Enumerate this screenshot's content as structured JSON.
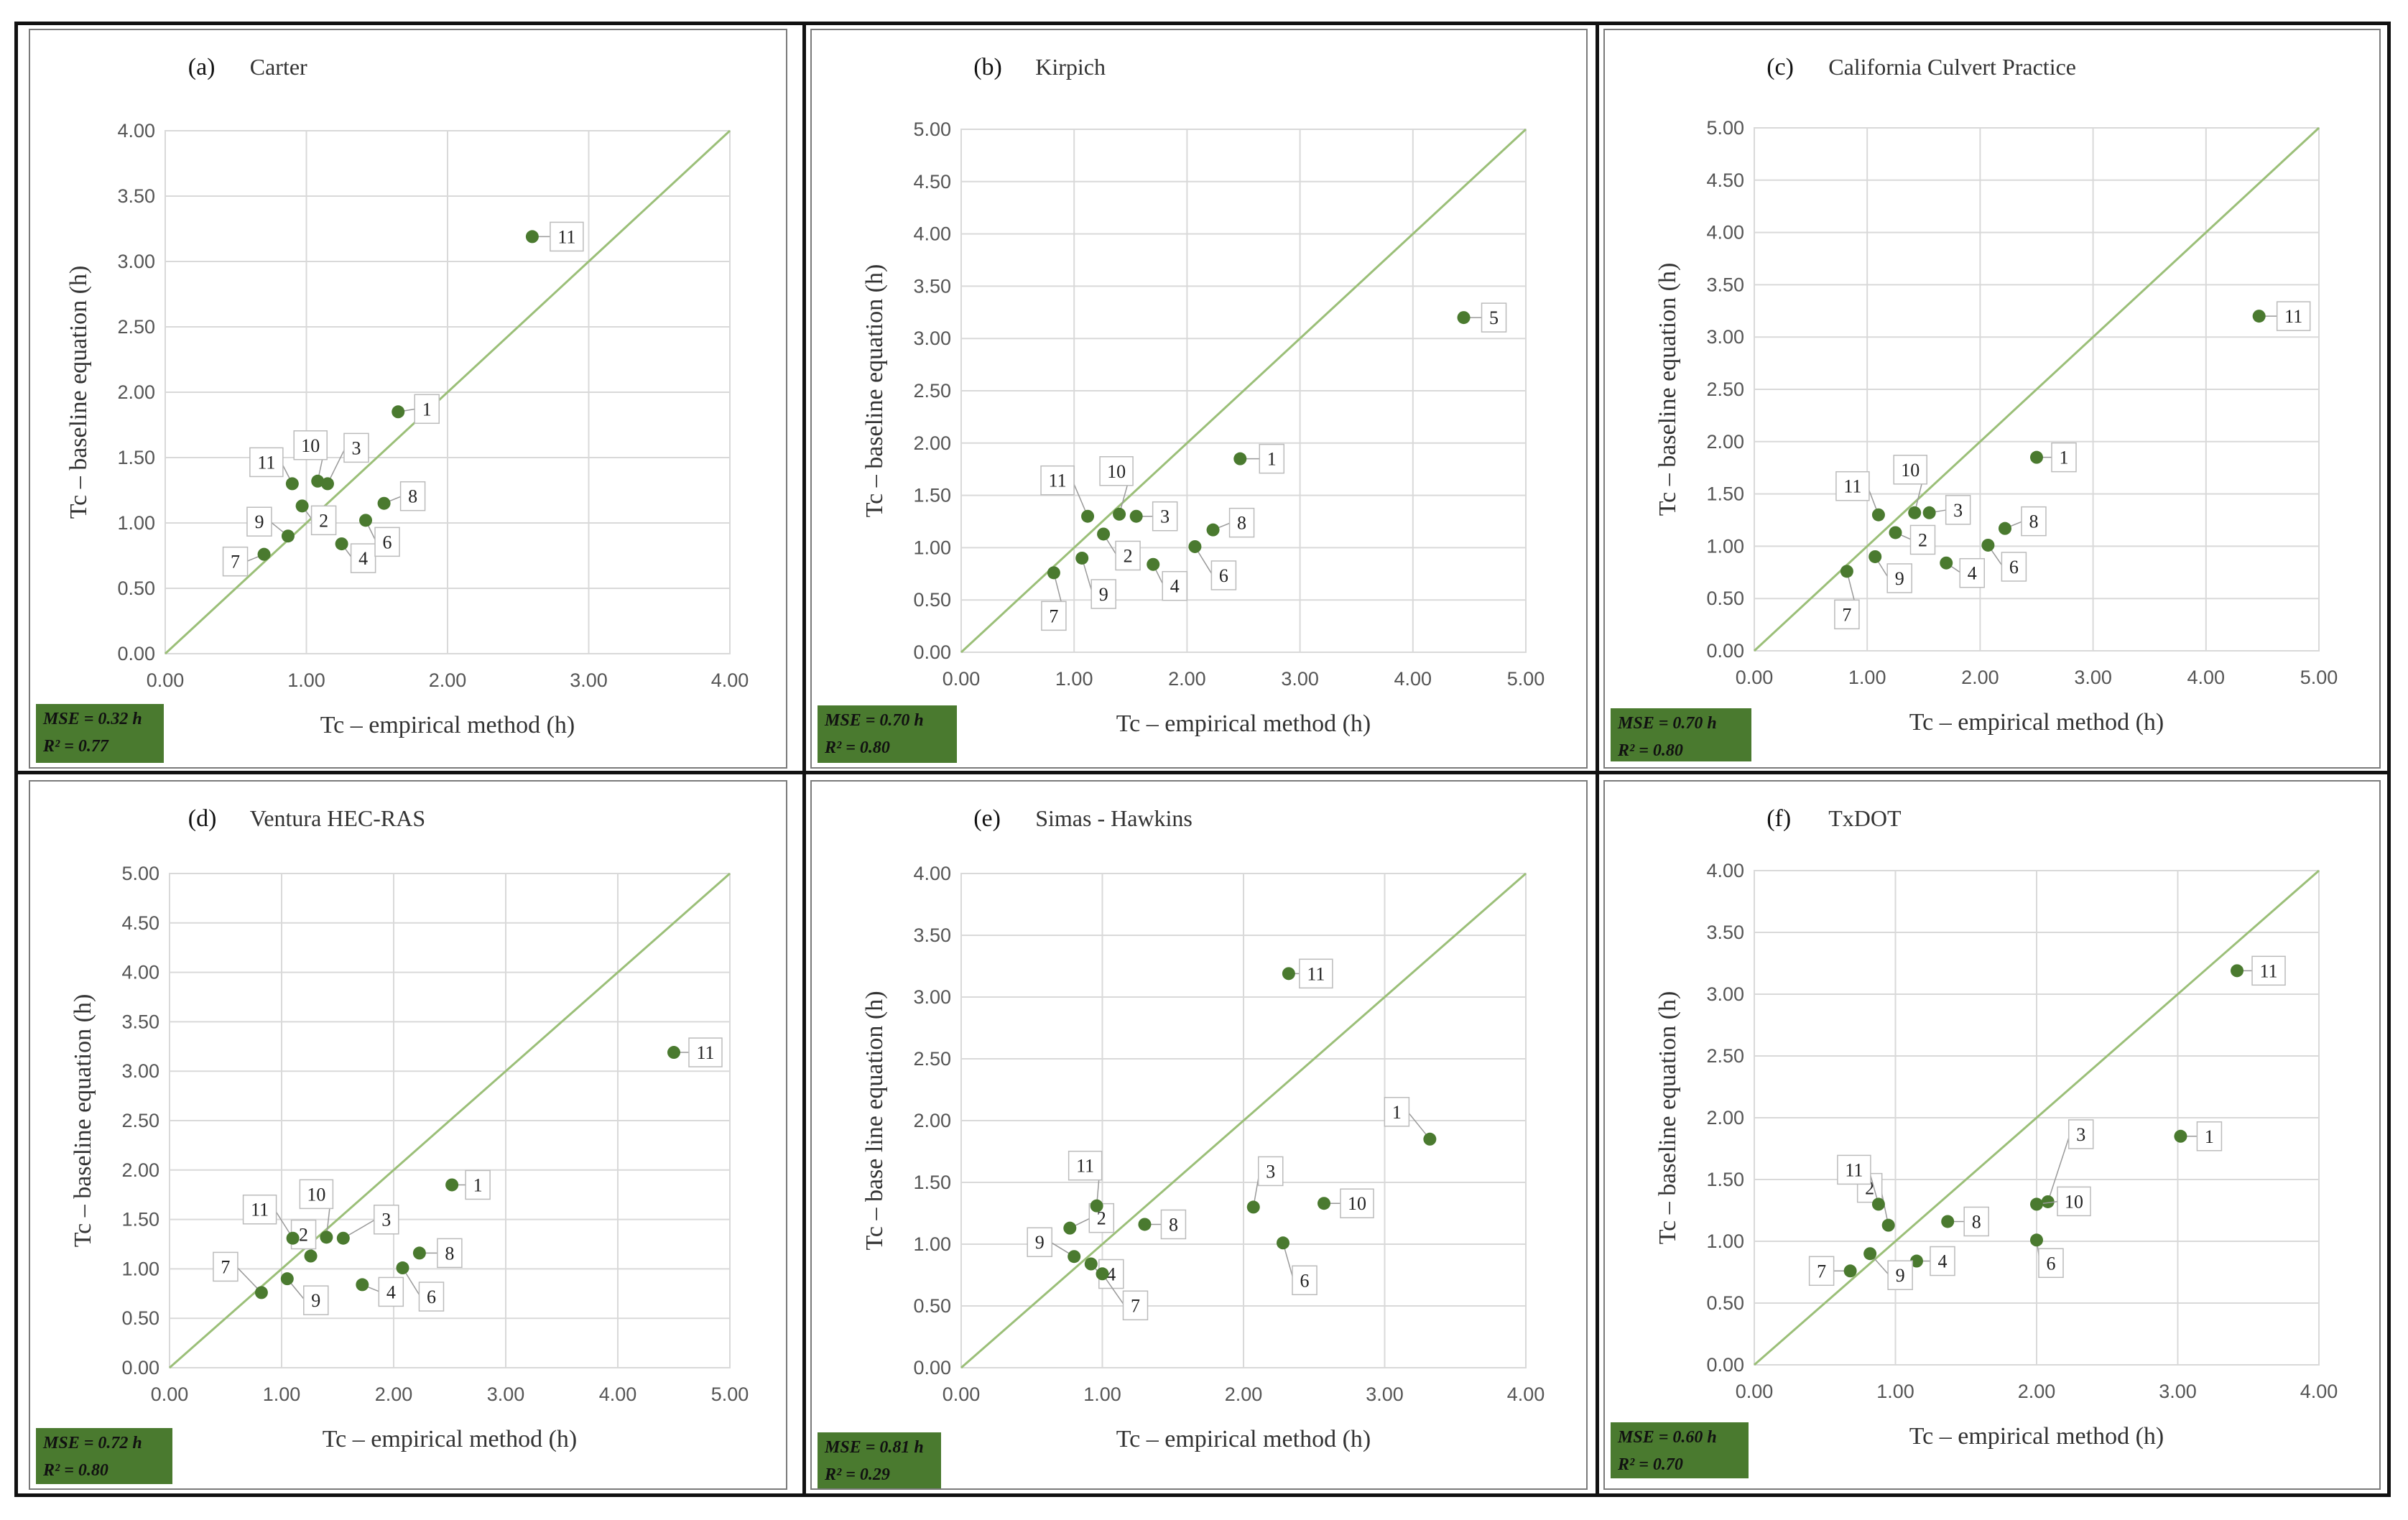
{
  "colors": {
    "point": "#4a7a2f",
    "line": "#9bbf78",
    "grid": "#d9d9d9",
    "stats_box": "#4a7a2f"
  },
  "chart_data": [
    {
      "type": "scatter",
      "panel_label": "(a)",
      "title": "Carter",
      "xlabel": "Tc – empirical method (h)",
      "ylabel": "Tc – baseline equation (h)",
      "xlim": [
        0,
        4
      ],
      "ylim": [
        0,
        4
      ],
      "xticks": [
        "0.00",
        "1.00",
        "2.00",
        "3.00",
        "4.00"
      ],
      "yticks": [
        "0.00",
        "0.50",
        "1.00",
        "1.50",
        "2.00",
        "2.50",
        "3.00",
        "3.50",
        "4.00"
      ],
      "x_step": 1,
      "y_step": 0.5,
      "identity_line": true,
      "points": [
        {
          "label": "1",
          "x": 1.65,
          "y": 1.85
        },
        {
          "label": "2",
          "x": 0.97,
          "y": 1.13
        },
        {
          "label": "3",
          "x": 1.15,
          "y": 1.3
        },
        {
          "label": "4",
          "x": 1.25,
          "y": 0.84
        },
        {
          "label": "6",
          "x": 1.42,
          "y": 1.02
        },
        {
          "label": "7",
          "x": 0.7,
          "y": 0.76
        },
        {
          "label": "8",
          "x": 1.55,
          "y": 1.15
        },
        {
          "label": "9",
          "x": 0.87,
          "y": 0.9
        },
        {
          "label": "10",
          "x": 1.08,
          "y": 1.32
        },
        {
          "label": "11",
          "x": 0.9,
          "y": 1.3
        },
        {
          "label": "11",
          "x": 2.6,
          "y": 3.19
        }
      ],
      "stats": {
        "mse": "MSE = 0.32 h",
        "r2": "R² = 0.77"
      }
    },
    {
      "type": "scatter",
      "panel_label": "(b)",
      "title": "Kirpich",
      "xlabel": "Tc – empirical method (h)",
      "ylabel": "Tc – baseline equation (h)",
      "xlim": [
        0,
        5
      ],
      "ylim": [
        0,
        5
      ],
      "xticks": [
        "0.00",
        "1.00",
        "2.00",
        "3.00",
        "4.00",
        "5.00"
      ],
      "yticks": [
        "0.00",
        "0.50",
        "1.00",
        "1.50",
        "2.00",
        "2.50",
        "3.00",
        "3.50",
        "4.00",
        "4.50",
        "5.00"
      ],
      "x_step": 1,
      "y_step": 0.5,
      "identity_line": true,
      "points": [
        {
          "label": "1",
          "x": 2.47,
          "y": 1.85
        },
        {
          "label": "2",
          "x": 1.26,
          "y": 1.13
        },
        {
          "label": "3",
          "x": 1.55,
          "y": 1.3
        },
        {
          "label": "4",
          "x": 1.7,
          "y": 0.84
        },
        {
          "label": "5",
          "x": 4.45,
          "y": 3.2
        },
        {
          "label": "6",
          "x": 2.07,
          "y": 1.01
        },
        {
          "label": "7",
          "x": 0.82,
          "y": 0.76
        },
        {
          "label": "8",
          "x": 2.23,
          "y": 1.17
        },
        {
          "label": "9",
          "x": 1.07,
          "y": 0.9
        },
        {
          "label": "10",
          "x": 1.4,
          "y": 1.32
        },
        {
          "label": "11",
          "x": 1.12,
          "y": 1.3
        }
      ],
      "stats": {
        "mse": "MSE = 0.70 h",
        "r2": "R² = 0.80"
      }
    },
    {
      "type": "scatter",
      "panel_label": "(c)",
      "title": "California Culvert Practice",
      "xlabel": "Tc – empirical method (h)",
      "ylabel": "Tc – baseline equation (h)",
      "xlim": [
        0,
        5
      ],
      "ylim": [
        0,
        5
      ],
      "xticks": [
        "0.00",
        "1.00",
        "2.00",
        "3.00",
        "4.00",
        "5.00"
      ],
      "yticks": [
        "0.00",
        "0.50",
        "1.00",
        "1.50",
        "2.00",
        "2.50",
        "3.00",
        "3.50",
        "4.00",
        "4.50",
        "5.00"
      ],
      "x_step": 1,
      "y_step": 0.5,
      "identity_line": true,
      "points": [
        {
          "label": "1",
          "x": 2.5,
          "y": 1.85
        },
        {
          "label": "2",
          "x": 1.25,
          "y": 1.13
        },
        {
          "label": "3",
          "x": 1.55,
          "y": 1.32
        },
        {
          "label": "4",
          "x": 1.7,
          "y": 0.84
        },
        {
          "label": "6",
          "x": 2.07,
          "y": 1.01
        },
        {
          "label": "7",
          "x": 0.82,
          "y": 0.76
        },
        {
          "label": "8",
          "x": 2.22,
          "y": 1.17
        },
        {
          "label": "9",
          "x": 1.07,
          "y": 0.9
        },
        {
          "label": "10",
          "x": 1.42,
          "y": 1.32
        },
        {
          "label": "11",
          "x": 1.1,
          "y": 1.3
        },
        {
          "label": "11",
          "x": 4.47,
          "y": 3.2
        }
      ],
      "stats": {
        "mse": "MSE = 0.70 h",
        "r2": "R² = 0.80"
      }
    },
    {
      "type": "scatter",
      "panel_label": "(d)",
      "title": "Ventura HEC-RAS",
      "xlabel": "Tc – empirical method (h)",
      "ylabel": "Tc – baseline equation (h)",
      "xlim": [
        0,
        5
      ],
      "ylim": [
        0,
        5
      ],
      "xticks": [
        "0.00",
        "1.00",
        "2.00",
        "3.00",
        "4.00",
        "5.00"
      ],
      "yticks": [
        "0.00",
        "0.50",
        "1.00",
        "1.50",
        "2.00",
        "2.50",
        "3.00",
        "3.50",
        "4.00",
        "4.50",
        "5.00"
      ],
      "x_step": 1,
      "y_step": 0.5,
      "identity_line": true,
      "points": [
        {
          "label": "1",
          "x": 2.52,
          "y": 1.85
        },
        {
          "label": "2",
          "x": 1.26,
          "y": 1.13
        },
        {
          "label": "3",
          "x": 1.55,
          "y": 1.31
        },
        {
          "label": "4",
          "x": 1.72,
          "y": 0.84
        },
        {
          "label": "6",
          "x": 2.08,
          "y": 1.01
        },
        {
          "label": "7",
          "x": 0.82,
          "y": 0.76
        },
        {
          "label": "8",
          "x": 2.23,
          "y": 1.16
        },
        {
          "label": "9",
          "x": 1.05,
          "y": 0.9
        },
        {
          "label": "10",
          "x": 1.4,
          "y": 1.32
        },
        {
          "label": "11",
          "x": 1.1,
          "y": 1.31
        },
        {
          "label": "11",
          "x": 4.5,
          "y": 3.19
        }
      ],
      "stats": {
        "mse": "MSE = 0.72 h",
        "r2": "R² = 0.80"
      }
    },
    {
      "type": "scatter",
      "panel_label": "(e)",
      "title": "Simas - Hawkins",
      "xlabel": "Tc – empirical method (h)",
      "ylabel": "Tc – base line equation (h)",
      "xlim": [
        0,
        4
      ],
      "ylim": [
        0,
        4
      ],
      "xticks": [
        "0.00",
        "1.00",
        "2.00",
        "3.00",
        "4.00"
      ],
      "yticks": [
        "0.00",
        "0.50",
        "1.00",
        "1.50",
        "2.00",
        "2.50",
        "3.00",
        "3.50",
        "4.00"
      ],
      "x_step": 1,
      "y_step": 0.5,
      "identity_line": true,
      "points": [
        {
          "label": "1",
          "x": 3.32,
          "y": 1.85
        },
        {
          "label": "2",
          "x": 0.77,
          "y": 1.13
        },
        {
          "label": "3",
          "x": 2.07,
          "y": 1.3
        },
        {
          "label": "4",
          "x": 0.92,
          "y": 0.84
        },
        {
          "label": "6",
          "x": 2.28,
          "y": 1.01
        },
        {
          "label": "7",
          "x": 1.0,
          "y": 0.76
        },
        {
          "label": "8",
          "x": 1.3,
          "y": 1.16
        },
        {
          "label": "9",
          "x": 0.8,
          "y": 0.9
        },
        {
          "label": "10",
          "x": 2.57,
          "y": 1.33
        },
        {
          "label": "11",
          "x": 0.96,
          "y": 1.31
        },
        {
          "label": "11",
          "x": 2.32,
          "y": 3.19
        }
      ],
      "stats": {
        "mse": "MSE = 0.81 h",
        "r2": "R² = 0.29"
      }
    },
    {
      "type": "scatter",
      "panel_label": "(f)",
      "title": "TxDOT",
      "xlabel": "Tc – empirical method (h)",
      "ylabel": "Tc – baseline equation (h)",
      "xlim": [
        0,
        4
      ],
      "ylim": [
        0,
        4
      ],
      "xticks": [
        "0.00",
        "1.00",
        "2.00",
        "3.00",
        "4.00"
      ],
      "yticks": [
        "0.00",
        "0.50",
        "1.00",
        "1.50",
        "2.00",
        "2.50",
        "3.00",
        "3.50",
        "4.00"
      ],
      "x_step": 1,
      "y_step": 0.5,
      "identity_line": true,
      "points": [
        {
          "label": "1",
          "x": 3.02,
          "y": 1.85
        },
        {
          "label": "2",
          "x": 0.95,
          "y": 1.13
        },
        {
          "label": "3",
          "x": 2.08,
          "y": 1.32
        },
        {
          "label": "4",
          "x": 1.15,
          "y": 0.84
        },
        {
          "label": "6",
          "x": 2.0,
          "y": 1.01
        },
        {
          "label": "7",
          "x": 0.68,
          "y": 0.76
        },
        {
          "label": "8",
          "x": 1.37,
          "y": 1.16
        },
        {
          "label": "9",
          "x": 0.82,
          "y": 0.9
        },
        {
          "label": "10",
          "x": 2.0,
          "y": 1.3
        },
        {
          "label": "11",
          "x": 0.88,
          "y": 1.3
        },
        {
          "label": "11",
          "x": 3.42,
          "y": 3.19
        }
      ],
      "stats": {
        "mse": "MSE = 0.60 h",
        "r2": "R² = 0.70"
      }
    }
  ]
}
